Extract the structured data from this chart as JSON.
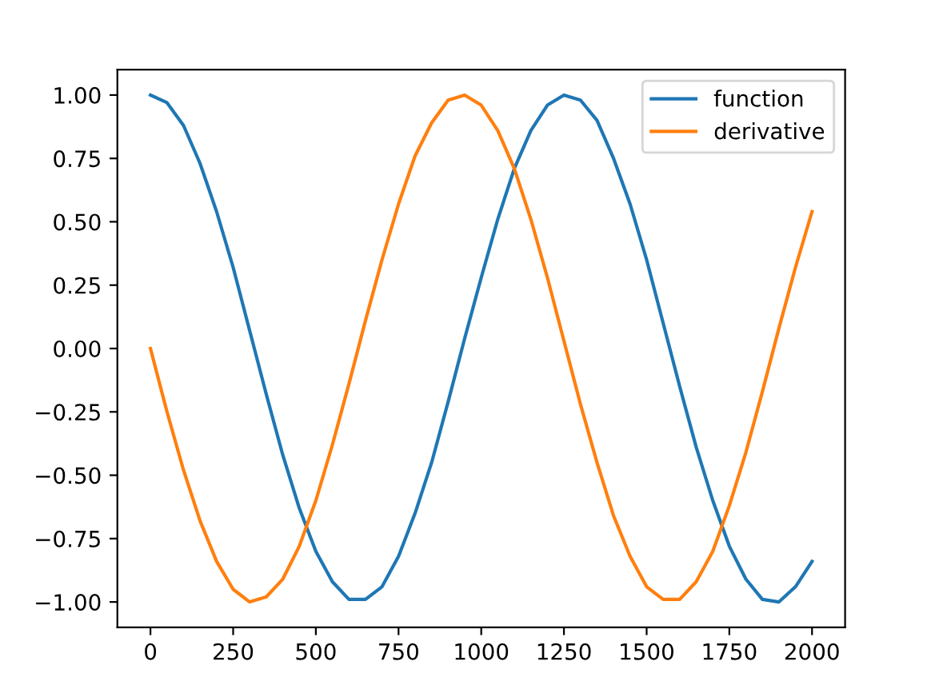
{
  "chart_data": {
    "type": "line",
    "x": [
      0,
      50,
      100,
      150,
      200,
      250,
      300,
      350,
      400,
      450,
      500,
      550,
      600,
      650,
      700,
      750,
      800,
      850,
      900,
      950,
      1000,
      1050,
      1100,
      1150,
      1200,
      1250,
      1300,
      1350,
      1400,
      1450,
      1500,
      1550,
      1600,
      1650,
      1700,
      1750,
      1800,
      1850,
      1900,
      1950,
      2000
    ],
    "series": [
      {
        "name": "function",
        "color": "#1f77b4",
        "values": [
          1.0,
          0.97,
          0.88,
          0.73,
          0.54,
          0.32,
          0.07,
          -0.18,
          -0.42,
          -0.63,
          -0.8,
          -0.92,
          -0.99,
          -0.99,
          -0.94,
          -0.82,
          -0.65,
          -0.45,
          -0.21,
          0.04,
          0.28,
          0.51,
          0.71,
          0.86,
          0.96,
          1.0,
          0.98,
          0.9,
          0.75,
          0.57,
          0.35,
          0.1,
          -0.15,
          -0.39,
          -0.6,
          -0.78,
          -0.91,
          -0.99,
          -1.0,
          -0.94,
          -0.84
        ]
      },
      {
        "name": "derivative",
        "color": "#ff7f0e",
        "values": [
          0.0,
          -0.25,
          -0.48,
          -0.68,
          -0.84,
          -0.95,
          -1.0,
          -0.98,
          -0.91,
          -0.78,
          -0.6,
          -0.38,
          -0.14,
          0.11,
          0.35,
          0.57,
          0.76,
          0.89,
          0.98,
          1.0,
          0.96,
          0.86,
          0.71,
          0.51,
          0.28,
          0.03,
          -0.22,
          -0.45,
          -0.66,
          -0.82,
          -0.94,
          -0.99,
          -0.99,
          -0.92,
          -0.8,
          -0.62,
          -0.41,
          -0.17,
          0.08,
          0.32,
          0.54
        ]
      }
    ],
    "xlim": [
      -100,
      2100
    ],
    "ylim": [
      -1.1,
      1.1
    ],
    "xticks": [
      0,
      250,
      500,
      750,
      1000,
      1250,
      1500,
      1750,
      2000
    ],
    "yticks": [
      {
        "value": -1,
        "label": "−1.00"
      },
      {
        "value": -0.75,
        "label": "−0.75"
      },
      {
        "value": -0.5,
        "label": "−0.50"
      },
      {
        "value": -0.25,
        "label": "−0.25"
      },
      {
        "value": 0,
        "label": "0.00"
      },
      {
        "value": 0.25,
        "label": "0.25"
      },
      {
        "value": 0.5,
        "label": "0.50"
      },
      {
        "value": 0.75,
        "label": "0.75"
      },
      {
        "value": 1,
        "label": "1.00"
      }
    ],
    "legend": "top right",
    "marker": "none",
    "line_style": "solid",
    "grid": false
  }
}
